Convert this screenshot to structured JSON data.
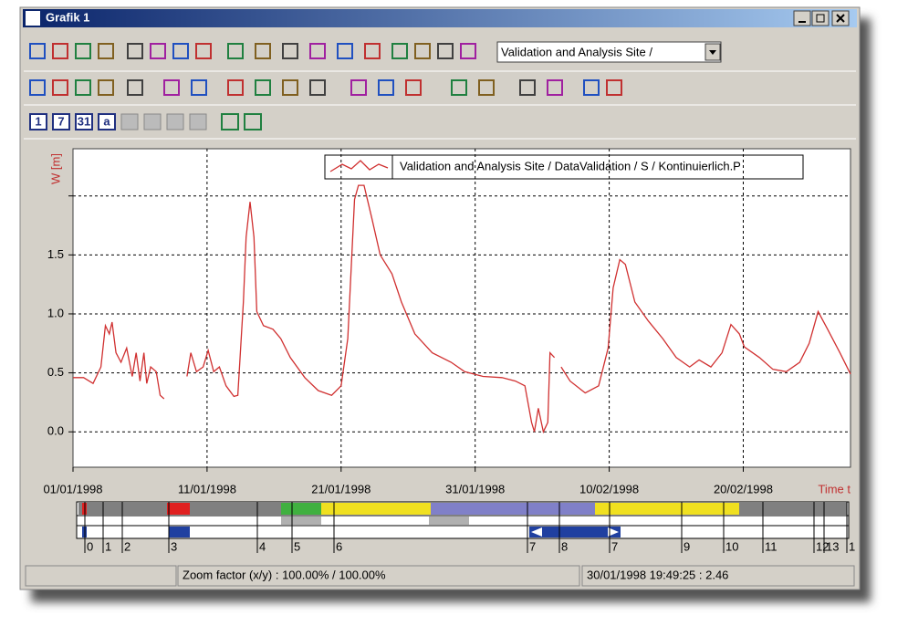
{
  "window": {
    "title": "Grafik 1",
    "combo": "Validation and Analysis Site /",
    "buttons": [
      "1",
      "7",
      "31",
      "a"
    ]
  },
  "chart_data": {
    "type": "line",
    "ylabel": "W [m]",
    "xlabel": "Time t",
    "x": [
      "1998-01-01T00:00",
      "1998-01-01T19:00",
      "1998-01-02T12:00",
      "1998-01-03T02:00",
      "1998-01-03T10:00",
      "1998-01-03T17:00",
      "1998-01-03T22:00",
      "1998-01-04T05:00",
      "1998-01-04T14:00",
      "1998-01-05T00:00",
      "1998-01-05T10:00",
      "1998-01-05T17:00",
      "1998-01-06T00:00",
      "1998-01-06T07:00",
      "1998-01-06T12:00",
      "1998-01-06T19:00",
      "1998-01-07T05:00",
      "1998-01-07T12:00",
      "1998-01-07T19:00",
      "1998-01-09T00:00",
      "1998-01-09T12:00",
      "1998-01-09T19:00",
      "1998-01-10T05:00",
      "1998-01-10T17:00",
      "1998-01-11T02:00",
      "1998-01-11T12:00",
      "1998-01-11T22:00",
      "1998-01-12T10:00",
      "1998-01-13T00:00",
      "1998-01-13T07:00",
      "1998-01-13T17:00",
      "1998-01-13T22:00",
      "1998-01-14T05:00",
      "1998-01-14T12:00",
      "1998-01-14T17:00",
      "1998-01-15T05:00",
      "1998-01-15T22:00",
      "1998-01-16T12:00",
      "1998-01-17T05:00",
      "1998-01-18T07:00",
      "1998-01-19T07:00",
      "1998-01-20T07:00",
      "1998-01-21T00:00",
      "1998-01-21T12:00",
      "1998-01-22T00:00",
      "1998-01-22T07:00",
      "1998-01-22T17:00",
      "1998-01-23T07:00",
      "1998-01-23T22:00",
      "1998-01-24T19:00",
      "1998-01-25T12:00",
      "1998-01-26T12:00",
      "1998-01-27T19:00",
      "1998-01-29T05:00",
      "1998-01-30T05:00",
      "1998-01-31T14:00",
      "1998-02-02T00:00",
      "1998-02-03T00:00",
      "1998-02-03T17:00",
      "1998-02-04T05:00",
      "1998-02-04T10:00",
      "1998-02-04T17:00",
      "1998-02-05T02:00",
      "1998-02-05T10:00",
      "1998-02-05T14:00",
      "1998-02-05T22:00",
      "1998-02-06T05:00",
      "1998-02-06T10:00",
      "1998-02-07T02:00",
      "1998-02-08T05:00",
      "1998-02-09T05:00",
      "1998-02-09T22:00",
      "1998-02-10T07:00",
      "1998-02-10T19:00",
      "1998-02-11T05:00",
      "1998-02-11T22:00",
      "1998-02-12T22:00",
      "1998-02-14T00:00",
      "1998-02-15T00:00",
      "1998-02-16T00:00",
      "1998-02-16T17:00",
      "1998-02-17T14:00",
      "1998-02-18T10:00",
      "1998-02-19T02:00",
      "1998-02-19T17:00",
      "1998-02-20T02:00",
      "1998-02-21T05:00",
      "1998-02-22T05:00",
      "1998-02-23T05:00",
      "1998-02-24T05:00",
      "1998-02-24T22:00",
      "1998-02-25T14:00",
      "1998-02-26T07:00",
      "1998-02-27T05:00",
      "1998-02-28T00:00"
    ],
    "series": [
      {
        "name": "Validation and Analysis Site / DataValidation / S / Kontinuierlich.P",
        "color": "#d03030",
        "values": [
          0.46,
          0.46,
          0.41,
          0.55,
          0.9,
          0.83,
          0.93,
          0.67,
          0.59,
          0.71,
          0.47,
          0.67,
          0.43,
          0.67,
          0.41,
          0.55,
          0.51,
          0.31,
          0.28,
          null,
          0.47,
          0.67,
          0.51,
          0.55,
          0.69,
          0.51,
          0.55,
          0.39,
          0.3,
          0.31,
          1.1,
          1.65,
          1.95,
          1.65,
          1.02,
          0.9,
          0.87,
          0.79,
          0.63,
          0.46,
          0.35,
          0.31,
          0.39,
          0.79,
          1.97,
          2.09,
          2.09,
          1.81,
          1.5,
          1.34,
          1.1,
          0.83,
          0.67,
          0.59,
          0.51,
          0.47,
          0.46,
          0.43,
          0.39,
          0.08,
          0.0,
          0.2,
          0.0,
          0.08,
          0.67,
          0.63,
          null,
          0.55,
          0.43,
          0.33,
          0.39,
          0.71,
          1.22,
          1.46,
          1.42,
          1.1,
          0.94,
          0.79,
          0.63,
          0.55,
          0.61,
          0.55,
          0.67,
          0.91,
          0.83,
          0.72,
          0.63,
          0.53,
          0.51,
          0.59,
          0.75,
          1.02,
          0.87,
          0.67,
          0.49
        ]
      }
    ],
    "xlim": [
      "1998-01-01T00:00",
      "1998-02-28T00:00"
    ],
    "xticks": [
      {
        "value": "1998-01-01T00:00",
        "label": "01/01/1998"
      },
      {
        "value": "1998-01-11T00:00",
        "label": "11/01/1998"
      },
      {
        "value": "1998-01-21T00:00",
        "label": "21/01/1998"
      },
      {
        "value": "1998-01-31T00:00",
        "label": "31/01/1998"
      },
      {
        "value": "1998-02-10T00:00",
        "label": "10/02/1998"
      },
      {
        "value": "1998-02-20T00:00",
        "label": "20/02/1998"
      }
    ],
    "ylim": [
      -0.3,
      2.4
    ],
    "yticks": [
      {
        "value": 0,
        "label": "0.0"
      },
      0.5,
      {
        "value": 1,
        "label": "1.0"
      },
      1.5,
      {
        "value": 2,
        "label": null
      }
    ],
    "grid": true
  },
  "event_markers": [
    "0",
    "1",
    "2",
    "3",
    "4",
    "5",
    "6",
    "7",
    "8",
    "7",
    "9",
    "10",
    "11",
    "12",
    "13",
    "1"
  ],
  "status": {
    "zoom": "Zoom factor (x/y) :   100.00% / 100.00%",
    "cursor": "30/01/1998 19:49:25 : 2.46"
  }
}
